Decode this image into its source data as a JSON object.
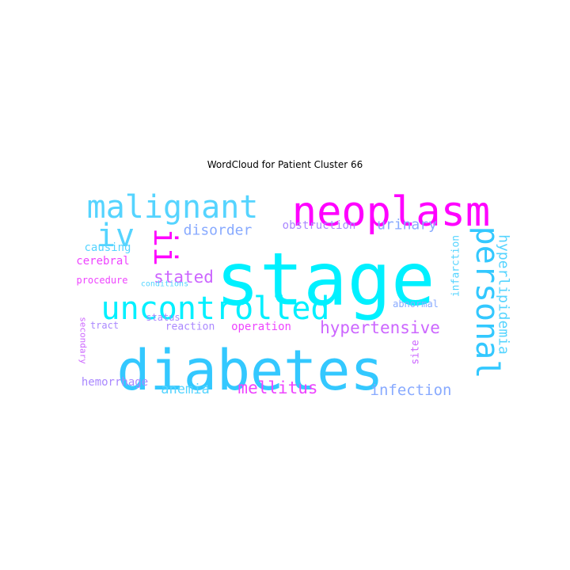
{
  "title": "WordCloud for Patient Cluster 66",
  "colors": {
    "cyan": "#00f0ff",
    "sky": "#33c8ff",
    "lightsky": "#55d4ff",
    "periwinkle": "#88aaff",
    "lavender": "#aa88ff",
    "violet": "#cc66ff",
    "magenta": "#ff00ff",
    "pink": "#ee44ff"
  },
  "chart_data": {
    "type": "wordcloud",
    "title": "WordCloud for Patient Cluster 66",
    "words": [
      {
        "text": "stage",
        "weight": 1.0,
        "color": "cyan"
      },
      {
        "text": "diabetes",
        "weight": 0.85,
        "color": "sky"
      },
      {
        "text": "neoplasm",
        "weight": 0.6,
        "color": "magenta"
      },
      {
        "text": "malignant",
        "weight": 0.55,
        "color": "lightsky"
      },
      {
        "text": "uncontrolled",
        "weight": 0.55,
        "color": "cyan"
      },
      {
        "text": "personal",
        "weight": 0.45,
        "color": "sky"
      },
      {
        "text": "iv",
        "weight": 0.45,
        "color": "lightsky"
      },
      {
        "text": "ii",
        "weight": 0.4,
        "color": "magenta"
      },
      {
        "text": "hypertensive",
        "weight": 0.25,
        "color": "violet"
      },
      {
        "text": "hyperlipidemia",
        "weight": 0.22,
        "color": "lightsky"
      },
      {
        "text": "stated",
        "weight": 0.22,
        "color": "violet"
      },
      {
        "text": "mellitus",
        "weight": 0.22,
        "color": "pink"
      },
      {
        "text": "infection",
        "weight": 0.2,
        "color": "periwinkle"
      },
      {
        "text": "disorder",
        "weight": 0.2,
        "color": "periwinkle"
      },
      {
        "text": "urinary",
        "weight": 0.2,
        "color": "periwinkle"
      },
      {
        "text": "anemia",
        "weight": 0.18,
        "color": "lightsky"
      },
      {
        "text": "operation",
        "weight": 0.15,
        "color": "pink"
      },
      {
        "text": "obstruction",
        "weight": 0.15,
        "color": "lavender"
      },
      {
        "text": "cerebral",
        "weight": 0.15,
        "color": "pink"
      },
      {
        "text": "causing",
        "weight": 0.15,
        "color": "lightsky"
      },
      {
        "text": "hemorrhage",
        "weight": 0.14,
        "color": "lavender"
      },
      {
        "text": "infarction",
        "weight": 0.13,
        "color": "lightsky"
      },
      {
        "text": "reaction",
        "weight": 0.13,
        "color": "lavender"
      },
      {
        "text": "site",
        "weight": 0.13,
        "color": "violet"
      },
      {
        "text": "abnormal",
        "weight": 0.12,
        "color": "periwinkle"
      },
      {
        "text": "procedure",
        "weight": 0.12,
        "color": "pink"
      },
      {
        "text": "tract",
        "weight": 0.12,
        "color": "lavender"
      },
      {
        "text": "status",
        "weight": 0.12,
        "color": "lavender"
      },
      {
        "text": "secondary",
        "weight": 0.11,
        "color": "violet"
      },
      {
        "text": "conditions",
        "weight": 0.1,
        "color": "lightsky"
      }
    ]
  }
}
